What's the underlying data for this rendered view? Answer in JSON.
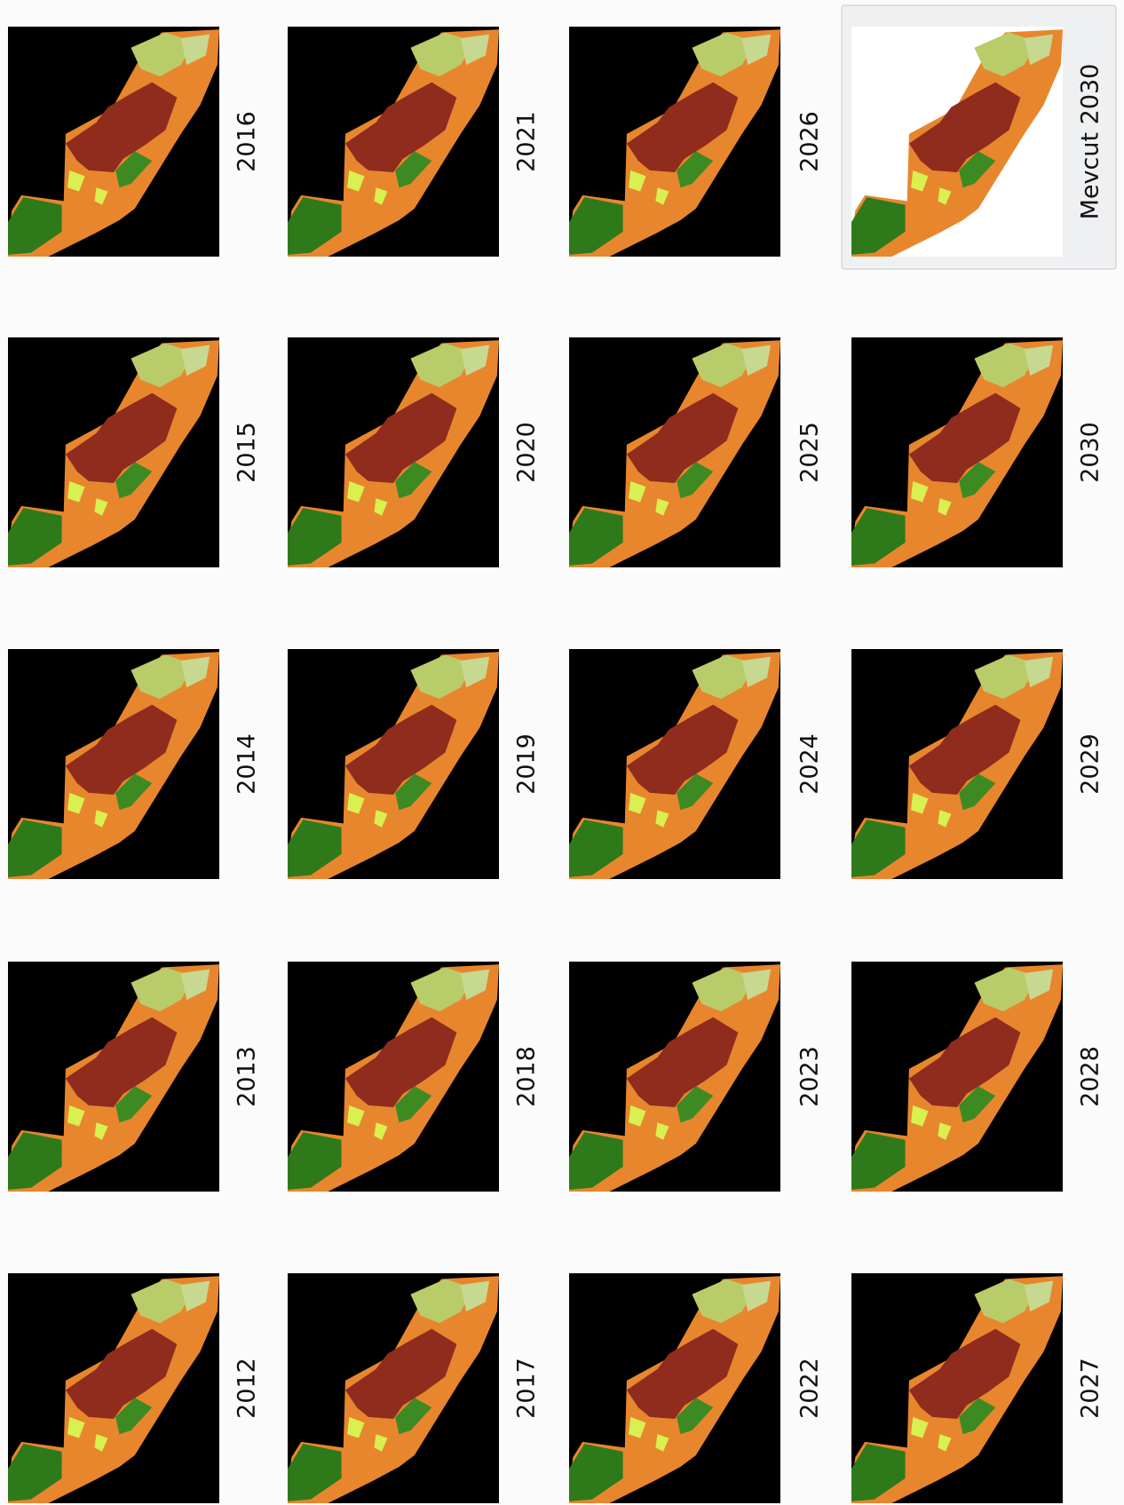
{
  "items": [
    {
      "label": "2012"
    },
    {
      "label": "2013"
    },
    {
      "label": "2014"
    },
    {
      "label": "2015"
    },
    {
      "label": "2016"
    },
    {
      "label": "2017"
    },
    {
      "label": "2018"
    },
    {
      "label": "2019"
    },
    {
      "label": "2020"
    },
    {
      "label": "2021"
    },
    {
      "label": "2022"
    },
    {
      "label": "2023"
    },
    {
      "label": "2024"
    },
    {
      "label": "2025"
    },
    {
      "label": "2026"
    },
    {
      "label": "2027"
    },
    {
      "label": "2028"
    },
    {
      "label": "2029"
    },
    {
      "label": "2030"
    },
    {
      "label": "Mevcut 2030"
    }
  ]
}
